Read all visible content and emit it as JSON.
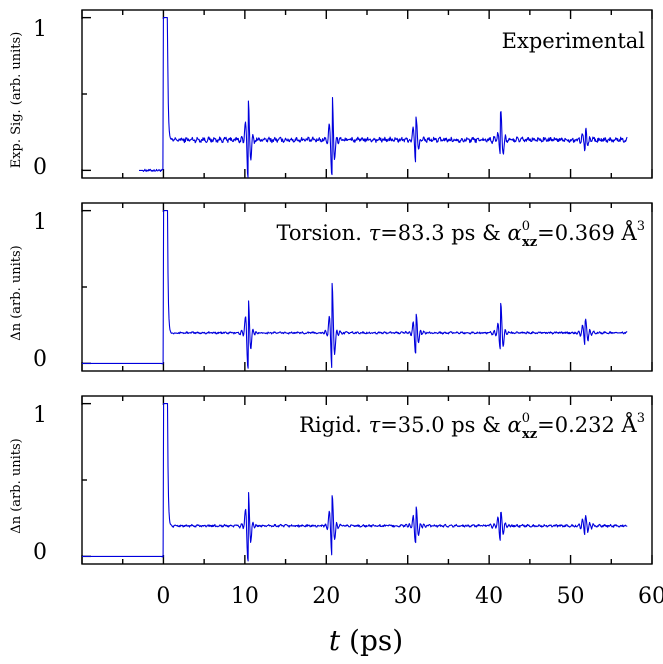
{
  "chart_data": {
    "type": "line",
    "colors": {
      "trace": "#0000dd",
      "axes": "#000000"
    },
    "x_axis": {
      "label_symbol": "t",
      "label_unit": "(ps)",
      "range": [
        -10,
        60
      ],
      "ticks": [
        "0",
        "10",
        "20",
        "30",
        "40",
        "50",
        "60"
      ]
    },
    "panels": [
      {
        "id": "experimental",
        "ylabel": "Exp. Sig. (arb. units)",
        "annotation_text": "Experimental",
        "y_ticks": [
          "0",
          "1"
        ],
        "ylim": [
          -0.05,
          1.05
        ],
        "series": {
          "x_start": -3.0,
          "x_end": 57.0,
          "baseline_start": -2.5,
          "pre_value": 0.0,
          "peak_value": 1.0,
          "plateau": 0.2,
          "noise": 0.012,
          "revivals": [
            {
              "t": 10.4,
              "value_up": 0.46,
              "value_down": -0.05
            },
            {
              "t": 20.7,
              "value_up": 0.51,
              "value_down": -0.02
            },
            {
              "t": 31.0,
              "value_up": 0.34,
              "value_down": 0.07
            },
            {
              "t": 41.4,
              "value_up": 0.37,
              "value_down": 0.12
            },
            {
              "t": 51.8,
              "value_up": 0.27,
              "value_down": 0.16
            }
          ]
        }
      },
      {
        "id": "torsion",
        "ylabel": "Δn (arb. units)",
        "annotation_prefix": "Torsion.",
        "tau_label": "τ",
        "tau_value": "83.3 ps",
        "amp": "&",
        "alpha_label": "α",
        "alpha_sup": "0",
        "alpha_sub": "xz",
        "alpha_value": "0.369 Å",
        "alpha_unit_sup": "3",
        "y_ticks": [
          "0",
          "1"
        ],
        "ylim": [
          -0.05,
          1.05
        ],
        "series": {
          "x_start": -10.0,
          "x_end": 57.0,
          "baseline_start": -0.2,
          "pre_value": 0.0,
          "peak_value": 1.0,
          "plateau": 0.2,
          "noise": 0.005,
          "revivals": [
            {
              "t": 10.4,
              "value_up": 0.42,
              "value_down": -0.03
            },
            {
              "t": 20.7,
              "value_up": 0.52,
              "value_down": -0.02
            },
            {
              "t": 31.0,
              "value_up": 0.31,
              "value_down": 0.08
            },
            {
              "t": 41.4,
              "value_up": 0.38,
              "value_down": 0.1
            },
            {
              "t": 51.8,
              "value_up": 0.28,
              "value_down": 0.14
            }
          ]
        }
      },
      {
        "id": "rigid",
        "ylabel": "Δn (arb. units)",
        "annotation_prefix": "Rigid.",
        "tau_label": "τ",
        "tau_value": "35.0 ps",
        "amp": "&",
        "alpha_label": "α",
        "alpha_sup": "0",
        "alpha_sub": "xz",
        "alpha_value": "0.232 Å",
        "alpha_unit_sup": "3",
        "y_ticks": [
          "0",
          "1"
        ],
        "ylim": [
          -0.05,
          1.05
        ],
        "series": {
          "x_start": -10.0,
          "x_end": 57.0,
          "baseline_start": -0.2,
          "pre_value": 0.0,
          "peak_value": 1.0,
          "plateau": 0.2,
          "noise": 0.006,
          "revivals": [
            {
              "t": 10.4,
              "value_up": 0.42,
              "value_down": -0.03
            },
            {
              "t": 20.7,
              "value_up": 0.4,
              "value_down": 0.02
            },
            {
              "t": 31.0,
              "value_up": 0.31,
              "value_down": 0.1
            },
            {
              "t": 41.4,
              "value_up": 0.28,
              "value_down": 0.11
            },
            {
              "t": 51.8,
              "value_up": 0.25,
              "value_down": 0.16
            }
          ]
        }
      }
    ]
  }
}
